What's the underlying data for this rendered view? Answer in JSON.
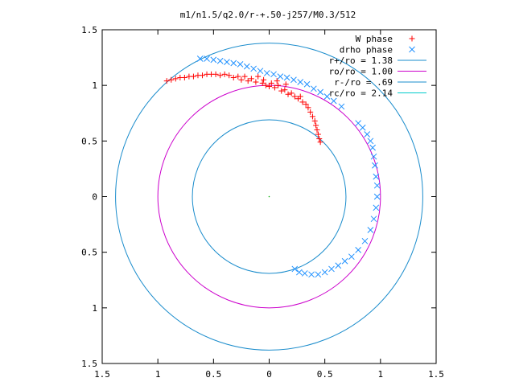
{
  "chart_data": {
    "type": "scatter",
    "title": "m1/n1.5/q2.0/r-+.50-j257/M0.3/512",
    "xlim": [
      -1.5,
      1.5
    ],
    "ylim": [
      -1.5,
      1.5
    ],
    "x_ticks": [
      -1.5,
      -1,
      -0.5,
      0,
      0.5,
      1,
      1.5
    ],
    "y_ticks": [
      1.5,
      1,
      0.5,
      0,
      -0.5,
      -1,
      -1.5
    ],
    "x_tick_labels": [
      "1.5",
      "1",
      "0.5",
      "0",
      "0.5",
      "1",
      "1.5"
    ],
    "y_tick_labels": [
      "1.5",
      "1",
      "0.5",
      "0",
      "0.5",
      "1",
      "1.5"
    ],
    "legend_position": "top-right",
    "colors": {
      "w_phase": "#ff0000",
      "drho_phase": "#1e90ff",
      "r_plus": "#1a8ccc",
      "r_o": "#cc00cc",
      "r_minus": "#1a8ccc",
      "r_c": "#00cccc"
    },
    "circles": [
      {
        "name": "r+/ro = 1.38",
        "r": 1.38,
        "color_key": "r_plus",
        "visible": true
      },
      {
        "name": "ro/ro = 1.00",
        "r": 1.0,
        "color_key": "r_o",
        "visible": true
      },
      {
        "name": "r-/ro = .69",
        "r": 0.69,
        "color_key": "r_minus",
        "visible": true
      },
      {
        "name": "rc/ro = 2.14",
        "r": 2.14,
        "color_key": "r_c",
        "visible": false
      }
    ],
    "series": [
      {
        "name": "W phase",
        "marker": "plus",
        "color_key": "w_phase",
        "points": [
          [
            -0.92,
            1.04
          ],
          [
            -0.88,
            1.05
          ],
          [
            -0.84,
            1.06
          ],
          [
            -0.8,
            1.07
          ],
          [
            -0.76,
            1.07
          ],
          [
            -0.72,
            1.08
          ],
          [
            -0.68,
            1.08
          ],
          [
            -0.64,
            1.09
          ],
          [
            -0.6,
            1.09
          ],
          [
            -0.56,
            1.1
          ],
          [
            -0.52,
            1.1
          ],
          [
            -0.48,
            1.1
          ],
          [
            -0.44,
            1.09
          ],
          [
            -0.4,
            1.1
          ],
          [
            -0.36,
            1.09
          ],
          [
            -0.32,
            1.07
          ],
          [
            -0.28,
            1.08
          ],
          [
            -0.25,
            1.05
          ],
          [
            -0.22,
            1.08
          ],
          [
            -0.19,
            1.04
          ],
          [
            -0.16,
            1.06
          ],
          [
            -0.12,
            1.03
          ],
          [
            -0.1,
            1.08
          ],
          [
            -0.06,
            1.02
          ],
          [
            -0.03,
            1.0
          ],
          [
            0.0,
            0.99
          ],
          [
            0.02,
            1.02
          ],
          [
            0.05,
            0.98
          ],
          [
            0.08,
            1.0
          ],
          [
            0.11,
            0.95
          ],
          [
            0.14,
            0.96
          ],
          [
            0.17,
            0.92
          ],
          [
            0.2,
            0.93
          ],
          [
            0.23,
            0.9
          ],
          [
            0.26,
            0.88
          ],
          [
            0.28,
            0.9
          ],
          [
            0.3,
            0.85
          ],
          [
            0.33,
            0.83
          ],
          [
            0.35,
            0.8
          ],
          [
            0.37,
            0.76
          ],
          [
            0.39,
            0.72
          ],
          [
            0.41,
            0.68
          ],
          [
            0.42,
            0.64
          ],
          [
            0.43,
            0.6
          ],
          [
            0.44,
            0.56
          ],
          [
            0.45,
            0.52
          ],
          [
            0.46,
            0.49
          ],
          [
            -0.05,
            1.05
          ],
          [
            0.07,
            1.04
          ],
          [
            0.15,
            1.01
          ]
        ]
      },
      {
        "name": "drho phase",
        "marker": "cross",
        "color_key": "drho_phase",
        "points": [
          [
            -0.62,
            1.24
          ],
          [
            -0.56,
            1.24
          ],
          [
            -0.5,
            1.23
          ],
          [
            -0.44,
            1.22
          ],
          [
            -0.38,
            1.21
          ],
          [
            -0.32,
            1.2
          ],
          [
            -0.26,
            1.19
          ],
          [
            -0.2,
            1.17
          ],
          [
            -0.14,
            1.15
          ],
          [
            -0.08,
            1.13
          ],
          [
            -0.02,
            1.11
          ],
          [
            0.04,
            1.1
          ],
          [
            0.1,
            1.08
          ],
          [
            0.16,
            1.07
          ],
          [
            0.22,
            1.05
          ],
          [
            0.28,
            1.03
          ],
          [
            0.34,
            1.01
          ],
          [
            0.4,
            0.97
          ],
          [
            0.46,
            0.94
          ],
          [
            0.52,
            0.9
          ],
          [
            0.58,
            0.86
          ],
          [
            0.65,
            0.81
          ],
          [
            0.8,
            0.66
          ],
          [
            0.84,
            0.62
          ],
          [
            0.88,
            0.56
          ],
          [
            0.91,
            0.5
          ],
          [
            0.93,
            0.44
          ],
          [
            0.94,
            0.36
          ],
          [
            0.95,
            0.28
          ],
          [
            0.96,
            0.18
          ],
          [
            0.97,
            0.1
          ],
          [
            0.97,
            0.0
          ],
          [
            0.96,
            -0.1
          ],
          [
            0.94,
            -0.2
          ],
          [
            0.91,
            -0.3
          ],
          [
            0.86,
            -0.4
          ],
          [
            0.8,
            -0.48
          ],
          [
            0.74,
            -0.54
          ],
          [
            0.68,
            -0.58
          ],
          [
            0.62,
            -0.62
          ],
          [
            0.56,
            -0.65
          ],
          [
            0.5,
            -0.68
          ],
          [
            0.44,
            -0.7
          ],
          [
            0.38,
            -0.7
          ],
          [
            0.32,
            -0.69
          ],
          [
            0.27,
            -0.68
          ],
          [
            0.23,
            -0.65
          ]
        ]
      }
    ]
  }
}
